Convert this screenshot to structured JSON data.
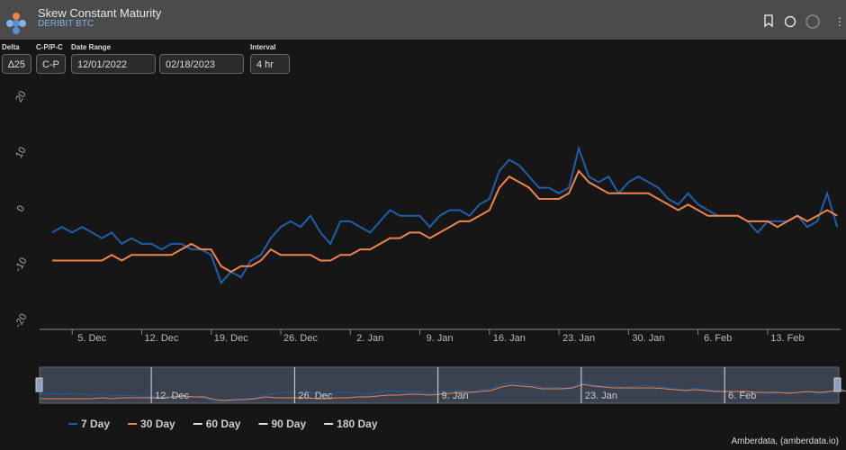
{
  "header": {
    "title": "Skew Constant Maturity",
    "subtitle": "DERIBIT BTC"
  },
  "controls": [
    {
      "label": "Delta",
      "value": "∆25"
    },
    {
      "label": "C-P/P-C",
      "value": "C-P"
    },
    {
      "label": "Date Range",
      "value": "12/01/2022"
    },
    {
      "value": "02/18/2023"
    },
    {
      "label": "Interval",
      "value": "4 hr"
    }
  ],
  "credit": "Amberdata, (amberdata.io)",
  "chart_data": {
    "type": "line",
    "x": [
      "1. Dec",
      "2. Dec",
      "3. Dec",
      "4. Dec",
      "5. Dec",
      "6. Dec",
      "7. Dec",
      "8. Dec",
      "9. Dec",
      "10. Dec",
      "11. Dec",
      "12. Dec",
      "13. Dec",
      "14. Dec",
      "15. Dec",
      "16. Dec",
      "17. Dec",
      "18. Dec",
      "19. Dec",
      "20. Dec",
      "21. Dec",
      "22. Dec",
      "23. Dec",
      "24. Dec",
      "25. Dec",
      "26. Dec",
      "27. Dec",
      "28. Dec",
      "29. Dec",
      "30. Dec",
      "31. Dec",
      "1. Jan",
      "2. Jan",
      "3. Jan",
      "4. Jan",
      "5. Jan",
      "6. Jan",
      "7. Jan",
      "8. Jan",
      "9. Jan",
      "10. Jan",
      "11. Jan",
      "12. Jan",
      "13. Jan",
      "14. Jan",
      "15. Jan",
      "16. Jan",
      "17. Jan",
      "18. Jan",
      "19. Jan",
      "20. Jan",
      "21. Jan",
      "22. Jan",
      "23. Jan",
      "24. Jan",
      "25. Jan",
      "26. Jan",
      "27. Jan",
      "28. Jan",
      "29. Jan",
      "30. Jan",
      "31. Jan",
      "1. Feb",
      "2. Feb",
      "3. Feb",
      "4. Feb",
      "5. Feb",
      "6. Feb",
      "7. Feb",
      "8. Feb",
      "9. Feb",
      "10. Feb",
      "11. Feb",
      "12. Feb",
      "13. Feb",
      "14. Feb",
      "15. Feb",
      "16. Feb",
      "17. Feb",
      "18. Feb"
    ],
    "series": [
      {
        "name": "7 Day",
        "color": "#1f5fa8",
        "values": [
          -4,
          -3,
          -4,
          -3,
          -4,
          -5,
          -4,
          -6,
          -5,
          -6,
          -6,
          -7,
          -6,
          -6,
          -7,
          -7,
          -8,
          -13,
          -11,
          -12,
          -9,
          -8,
          -5,
          -3,
          -2,
          -3,
          -1,
          -4,
          -6,
          -2,
          -2,
          -3,
          -4,
          -2,
          0,
          -1,
          -1,
          -1,
          -3,
          -1,
          0,
          0,
          -1,
          1,
          2,
          7,
          9,
          8,
          6,
          4,
          4,
          3,
          4,
          11,
          6,
          5,
          6,
          3,
          5,
          6,
          5,
          4,
          2,
          1,
          3,
          1,
          0,
          -1,
          -1,
          -1,
          -2,
          -4,
          -2,
          -2,
          -2,
          -1,
          -3,
          -2,
          3,
          -3
        ]
      },
      {
        "name": "30 Day",
        "color": "#f0834a",
        "values": [
          -9,
          -9,
          -9,
          -9,
          -9,
          -9,
          -8,
          -9,
          -8,
          -8,
          -8,
          -8,
          -8,
          -7,
          -6,
          -7,
          -7,
          -10,
          -11,
          -10,
          -10,
          -9,
          -7,
          -8,
          -8,
          -8,
          -8,
          -9,
          -9,
          -8,
          -8,
          -7,
          -7,
          -6,
          -5,
          -5,
          -4,
          -4,
          -5,
          -4,
          -3,
          -2,
          -2,
          -1,
          0,
          4,
          6,
          5,
          4,
          2,
          2,
          2,
          3,
          7,
          5,
          4,
          3,
          3,
          3,
          3,
          3,
          2,
          1,
          0,
          1,
          0,
          -1,
          -1,
          -1,
          -1,
          -2,
          -2,
          -2,
          -3,
          -2,
          -1,
          -2,
          -1,
          0,
          -1
        ]
      }
    ],
    "hidden_series": [
      "60 Day",
      "90 Day",
      "180 Day"
    ],
    "xticks": [
      "5. Dec",
      "12. Dec",
      "19. Dec",
      "26. Dec",
      "2. Jan",
      "9. Jan",
      "16. Jan",
      "23. Jan",
      "30. Jan",
      "6. Feb",
      "13. Feb"
    ],
    "navigator_ticks": [
      "12. Dec",
      "26. Dec",
      "9. Jan",
      "23. Jan",
      "6. Feb"
    ],
    "ylim": [
      -20,
      20
    ],
    "yticks": [
      -20,
      -10,
      0,
      10,
      20
    ],
    "grid": false
  }
}
